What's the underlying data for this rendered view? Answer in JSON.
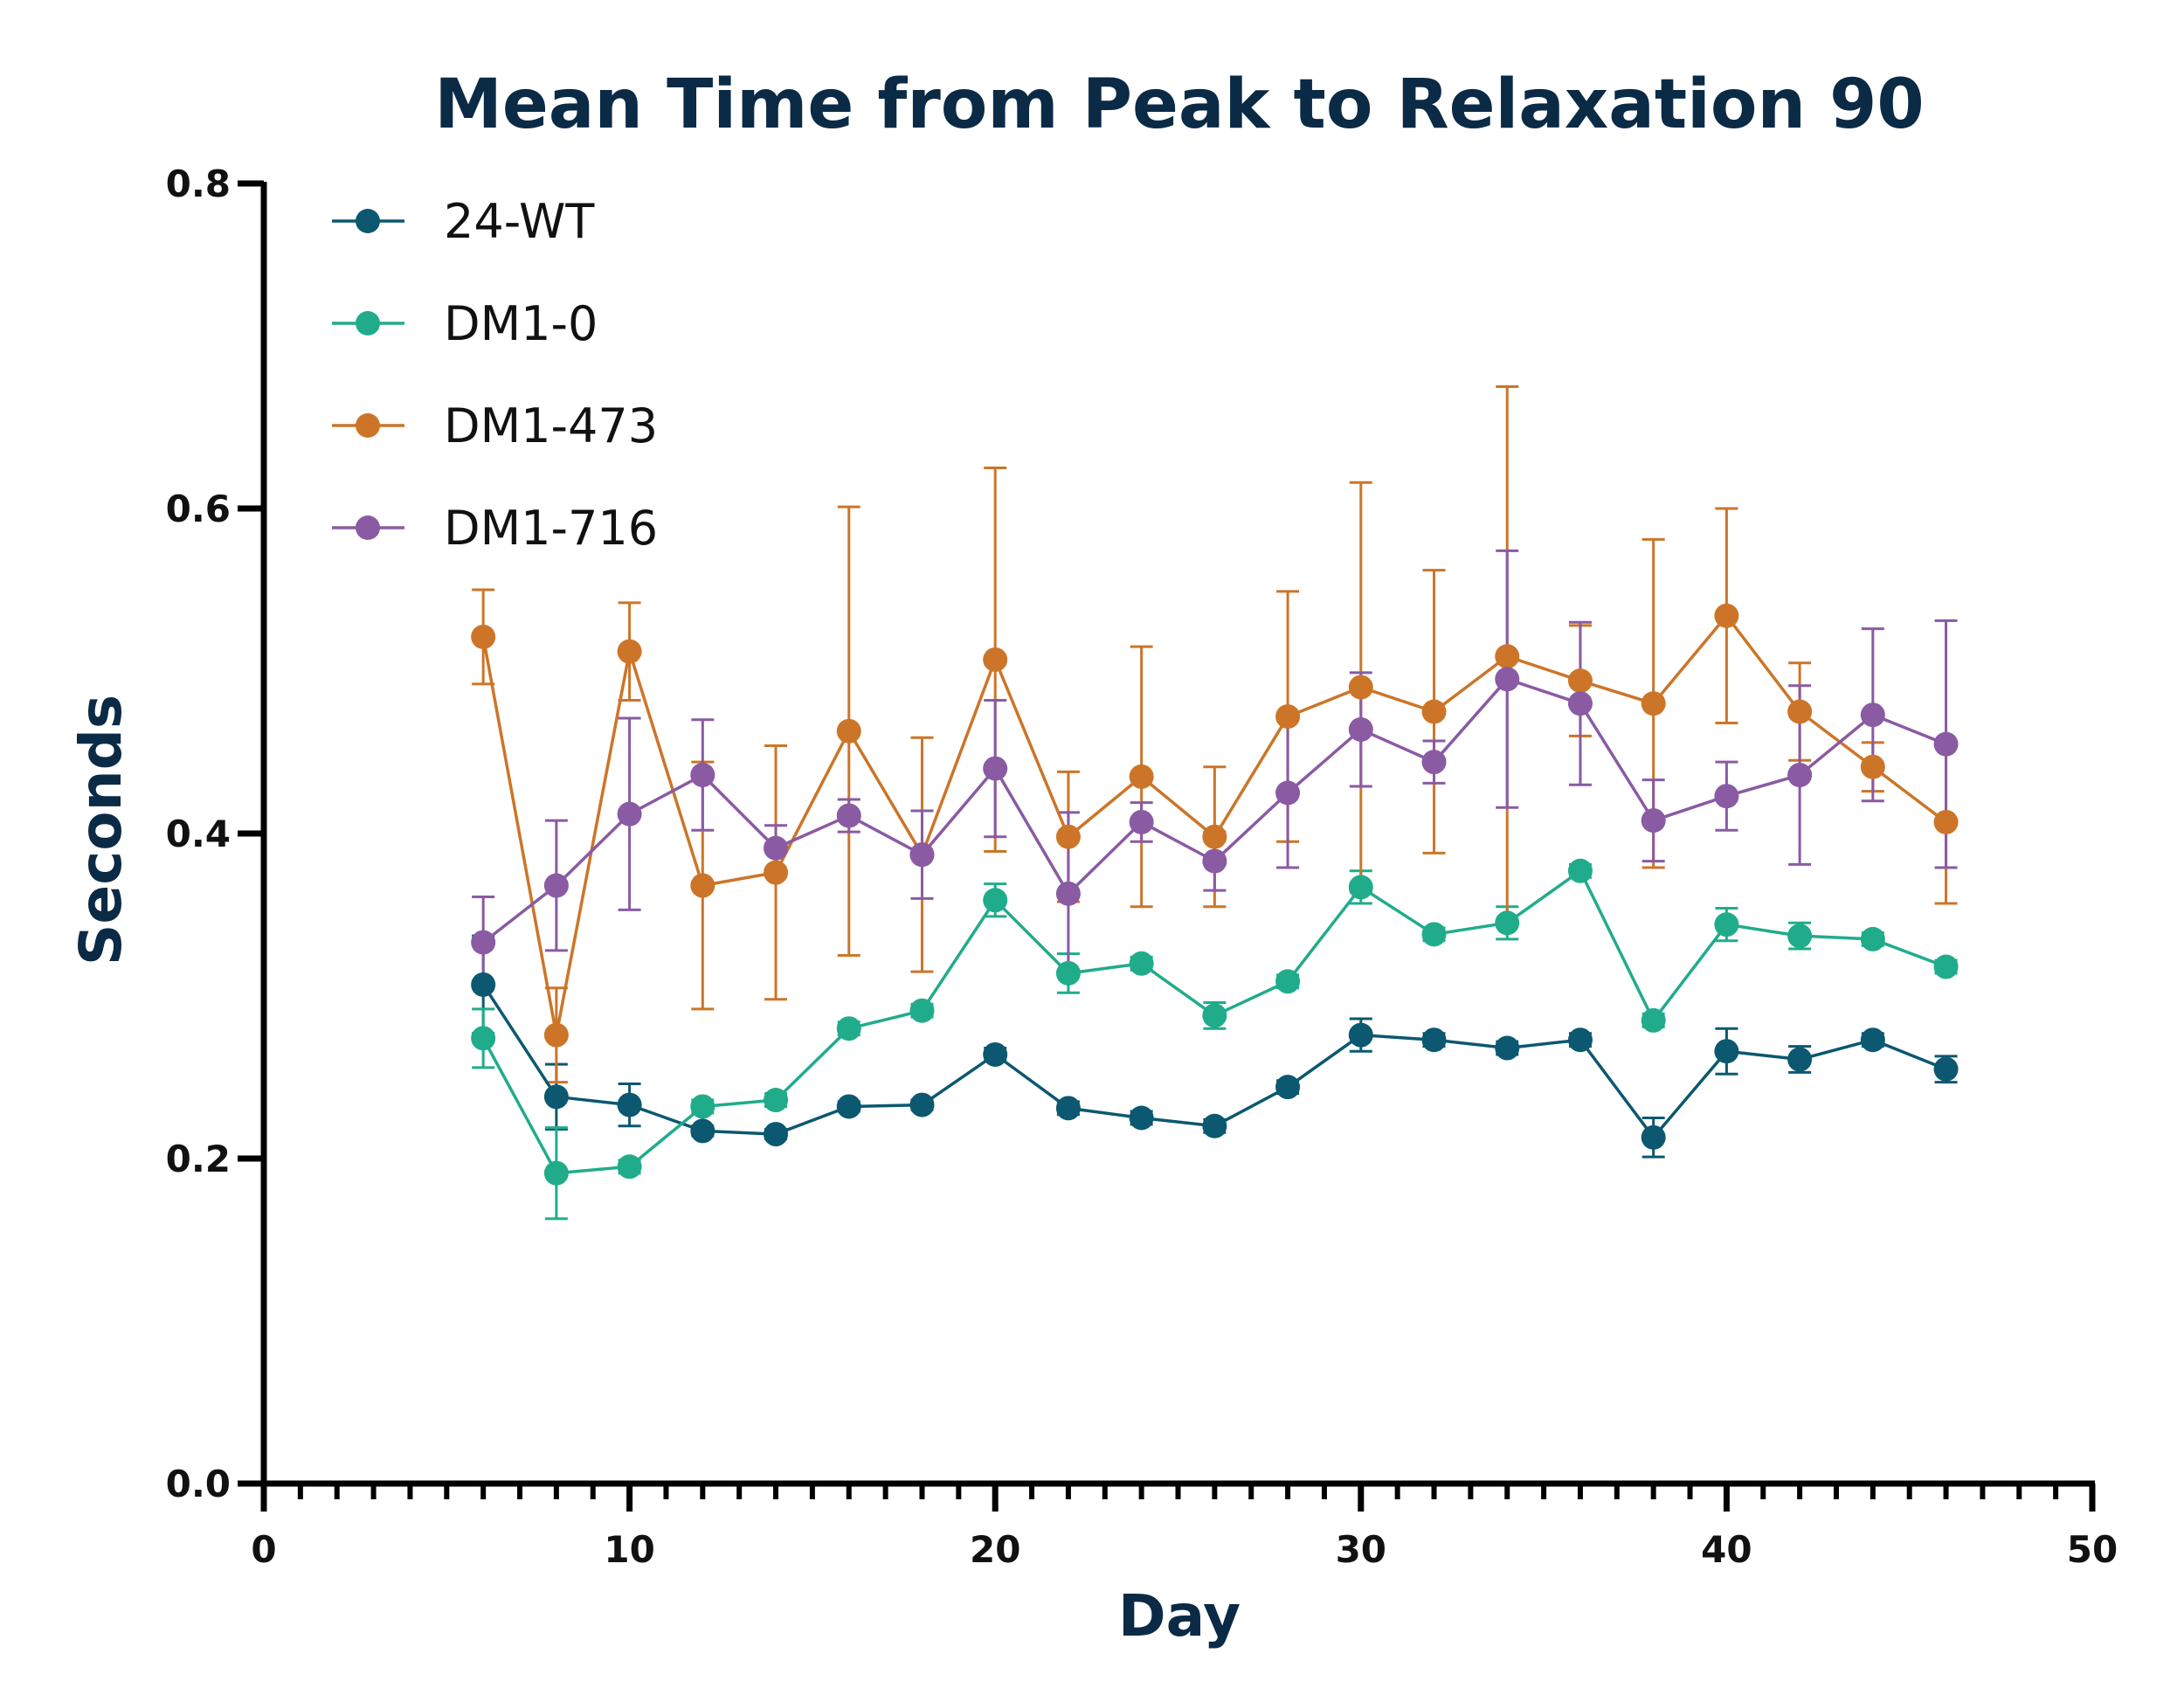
{
  "chart_data": {
    "type": "line",
    "title": "Mean Time from Peak to Relaxation 90",
    "xlabel": "Day",
    "ylabel": "Seconds",
    "xlim": [
      0,
      50
    ],
    "ylim": [
      0,
      0.8
    ],
    "x_ticks": [
      0,
      10,
      20,
      30,
      40,
      50
    ],
    "y_ticks": [
      0.0,
      0.2,
      0.4,
      0.6,
      0.8
    ],
    "x_tick_labels": [
      "0",
      "10",
      "20",
      "30",
      "40",
      "50"
    ],
    "y_tick_labels": [
      "0.0",
      "0.2",
      "0.4",
      "0.6",
      "0.8"
    ],
    "x_minor_step": 1,
    "grid": false,
    "legend_position": "top-left",
    "x": [
      6,
      8,
      10,
      12,
      14,
      16,
      18,
      20,
      22,
      24,
      26,
      28,
      30,
      32,
      34,
      36,
      38,
      40,
      42,
      44,
      46
    ],
    "series": [
      {
        "name": "24-WT",
        "color": "#0b5870",
        "values": [
          0.307,
          0.238,
          0.233,
          0.217,
          0.215,
          0.232,
          0.233,
          0.264,
          0.231,
          0.225,
          0.22,
          0.244,
          0.276,
          0.273,
          0.268,
          0.273,
          0.213,
          0.266,
          0.261,
          0.273,
          0.255
        ],
        "errors": [
          0.03,
          0.02,
          0.013,
          0.003,
          0.003,
          0.003,
          0.003,
          0.004,
          0.004,
          0.004,
          0.004,
          0.004,
          0.01,
          0.004,
          0.004,
          0.004,
          0.012,
          0.014,
          0.008,
          0.004,
          0.008
        ]
      },
      {
        "name": "DM1-0",
        "color": "#20ac8b",
        "values": [
          0.274,
          0.191,
          0.195,
          0.232,
          0.236,
          0.28,
          0.291,
          0.359,
          0.314,
          0.32,
          0.288,
          0.309,
          0.367,
          0.338,
          0.345,
          0.377,
          0.285,
          0.344,
          0.337,
          0.335,
          0.318
        ],
        "errors": [
          0.018,
          0.028,
          0.004,
          0.004,
          0.004,
          0.004,
          0.004,
          0.01,
          0.012,
          0.004,
          0.008,
          0.004,
          0.01,
          0.004,
          0.01,
          0.004,
          0.004,
          0.01,
          0.008,
          0.004,
          0.004
        ]
      },
      {
        "name": "DM1-473",
        "color": "#cc7528",
        "values": [
          0.521,
          0.276,
          0.512,
          0.368,
          0.376,
          0.463,
          0.387,
          0.507,
          0.398,
          0.435,
          0.398,
          0.472,
          0.49,
          0.475,
          0.509,
          0.494,
          0.48,
          0.534,
          0.475,
          0.441,
          0.407
        ],
        "errors": [
          0.029,
          0.029,
          0.03,
          0.076,
          0.078,
          0.138,
          0.072,
          0.118,
          0.04,
          0.08,
          0.043,
          0.077,
          0.126,
          0.087,
          0.166,
          0.034,
          0.101,
          0.066,
          0.03,
          0.015,
          0.05
        ]
      },
      {
        "name": "DM1-716",
        "color": "#8a5aa3",
        "values": [
          0.333,
          0.368,
          0.412,
          0.436,
          0.391,
          0.411,
          0.387,
          0.44,
          0.363,
          0.407,
          0.383,
          0.425,
          0.464,
          0.444,
          0.495,
          0.48,
          0.408,
          0.423,
          0.436,
          0.473,
          0.455
        ],
        "errors": [
          0.028,
          0.04,
          0.059,
          0.034,
          0.014,
          0.01,
          0.027,
          0.042,
          0.05,
          0.012,
          0.018,
          0.046,
          0.035,
          0.013,
          0.079,
          0.05,
          0.025,
          0.021,
          0.055,
          0.053,
          0.076
        ]
      }
    ]
  }
}
